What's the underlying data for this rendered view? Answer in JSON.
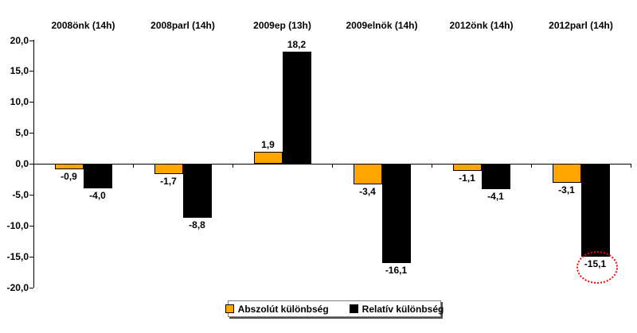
{
  "chart_data": {
    "type": "bar",
    "title": "",
    "xlabel": "",
    "ylabel": "",
    "grid": false,
    "legend_position": "bottom",
    "ylim": [
      -20,
      20
    ],
    "y_ticks": {
      "values": [
        20,
        15,
        10,
        5,
        0,
        -5,
        -10,
        -15,
        -20
      ],
      "labels": [
        "20,0",
        "15,0",
        "10,0",
        "5,0",
        "0,0",
        "-5,0",
        "-10,0",
        "-15,0",
        "-20,0"
      ]
    },
    "categories": [
      "2008önk (14h)",
      "2008parl (14h)",
      "2009ep (13h)",
      "2009elnök (14h)",
      "2012önk (14h)",
      "2012parl (14h)"
    ],
    "series": [
      {
        "name": "Abszolút különbség",
        "color": "#FFA500",
        "values": [
          -0.9,
          -1.7,
          1.9,
          -3.4,
          -1.1,
          -3.1
        ],
        "labels": [
          "-0,9",
          "-1,7",
          "1,9",
          "-3,4",
          "-1,1",
          "-3,1"
        ]
      },
      {
        "name": "Relatív különbség",
        "color": "#000000",
        "values": [
          -4.0,
          -8.8,
          18.2,
          -16.1,
          -4.1,
          -15.1
        ],
        "labels": [
          "-4,0",
          "-8,8",
          "18,2",
          "-16,1",
          "-4,1",
          "-15,1"
        ]
      }
    ],
    "annotation": {
      "type": "dashed-red-ellipse",
      "series": 1,
      "index": 5,
      "label": "-15,1",
      "color": "#FF0000"
    }
  }
}
